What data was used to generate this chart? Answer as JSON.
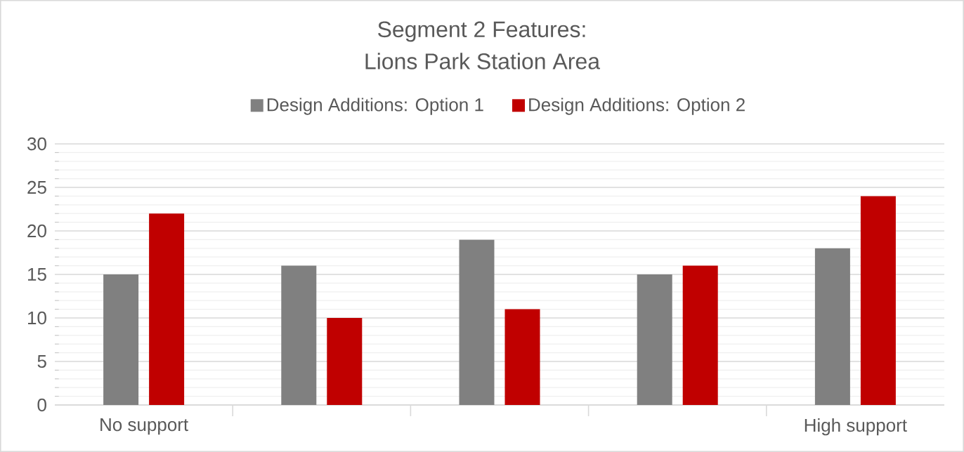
{
  "chart_data": {
    "type": "bar",
    "title": "Segment 2 Features:",
    "subtitle": "Lions Park Station Area",
    "categories": [
      "No support",
      null,
      null,
      null,
      "High support"
    ],
    "series": [
      {
        "name": "Design Additions: Option 1",
        "color": "#808080",
        "values": [
          15,
          16,
          19,
          15,
          18
        ]
      },
      {
        "name": "Design Additions: Option 2",
        "color": "#c00000",
        "values": [
          22,
          10,
          11,
          16,
          24
        ]
      }
    ],
    "ylim": [
      0,
      30
    ],
    "yticks": [
      0,
      5,
      10,
      15,
      20,
      25,
      30
    ],
    "grid": "y",
    "legend": "top"
  }
}
